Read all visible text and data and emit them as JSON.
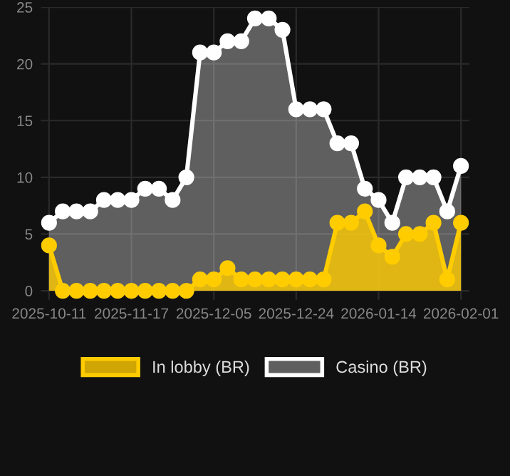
{
  "chart_data": {
    "type": "area",
    "categories": [
      "2025-10-11",
      null,
      null,
      null,
      null,
      null,
      "2025-11-17",
      null,
      null,
      null,
      null,
      null,
      "2025-12-05",
      null,
      null,
      null,
      null,
      null,
      "2025-12-24",
      null,
      null,
      null,
      null,
      null,
      "2026-01-14",
      null,
      null,
      null,
      null,
      null,
      "2026-02-01"
    ],
    "series": [
      {
        "name": "In lobby (BR)",
        "color": "#ffcc00",
        "values": [
          4,
          0,
          0,
          0,
          0,
          0,
          0,
          0,
          0,
          0,
          0,
          1,
          1,
          2,
          1,
          1,
          1,
          1,
          1,
          1,
          1,
          6,
          6,
          7,
          4,
          3,
          5,
          5,
          6,
          1,
          6
        ]
      },
      {
        "name": "Casino (BR)",
        "color": "#ffffff",
        "values": [
          6,
          7,
          7,
          7,
          8,
          8,
          8,
          9,
          9,
          8,
          10,
          21,
          21,
          22,
          22,
          24,
          24,
          23,
          16,
          16,
          16,
          13,
          13,
          9,
          8,
          6,
          10,
          10,
          10,
          7,
          11
        ]
      }
    ],
    "ylim": [
      -0.8,
      25
    ],
    "yticks": [
      0,
      5,
      10,
      15,
      20,
      25
    ],
    "grid": true,
    "legend": "bottom",
    "marker": "circle",
    "line_style": "solid"
  }
}
